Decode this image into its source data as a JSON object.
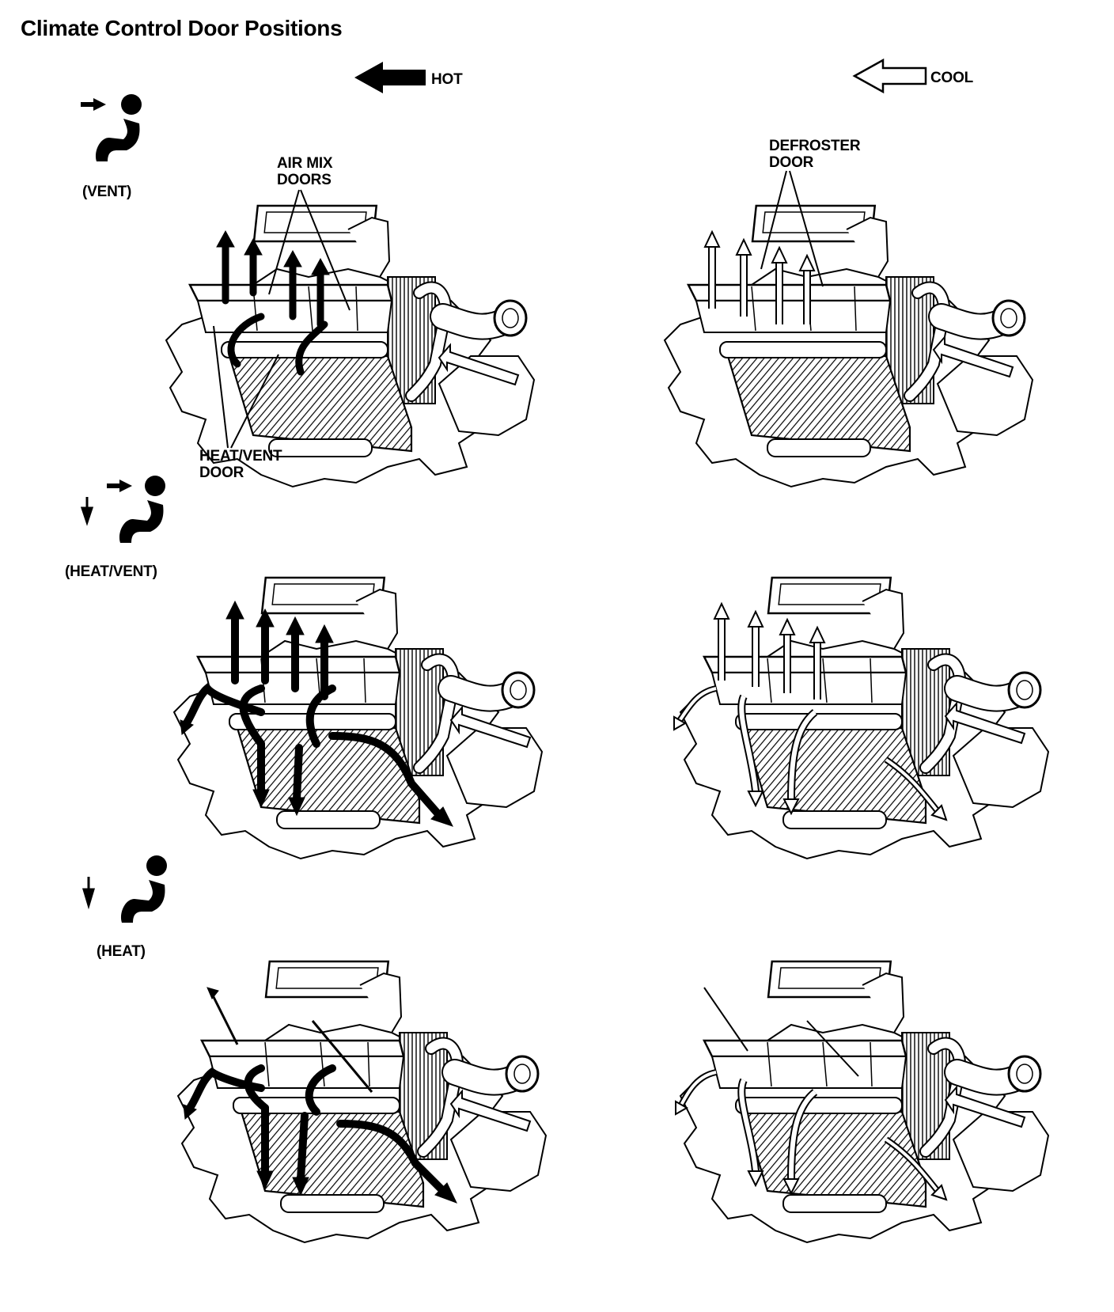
{
  "title": "Climate Control Door Positions",
  "legend": {
    "hot": "HOT",
    "cool": "COOL"
  },
  "modes": [
    {
      "label": "(VENT)",
      "icon": "vent-mode-icon"
    },
    {
      "label": "(HEAT/VENT)",
      "icon": "heat-vent-mode-icon"
    },
    {
      "label": "(HEAT)",
      "icon": "heat-mode-icon"
    }
  ],
  "callouts": {
    "air_mix_line1": "AIR MIX",
    "air_mix_line2": "DOORS",
    "heat_vent_line1": "HEAT/VENT",
    "heat_vent_line2": "DOOR",
    "defroster_line1": "DEFROSTER",
    "defroster_line2": "DOOR"
  },
  "colors": {
    "hot_flow": "#000000",
    "cool_flow": "#ffffff",
    "line": "#000000"
  }
}
